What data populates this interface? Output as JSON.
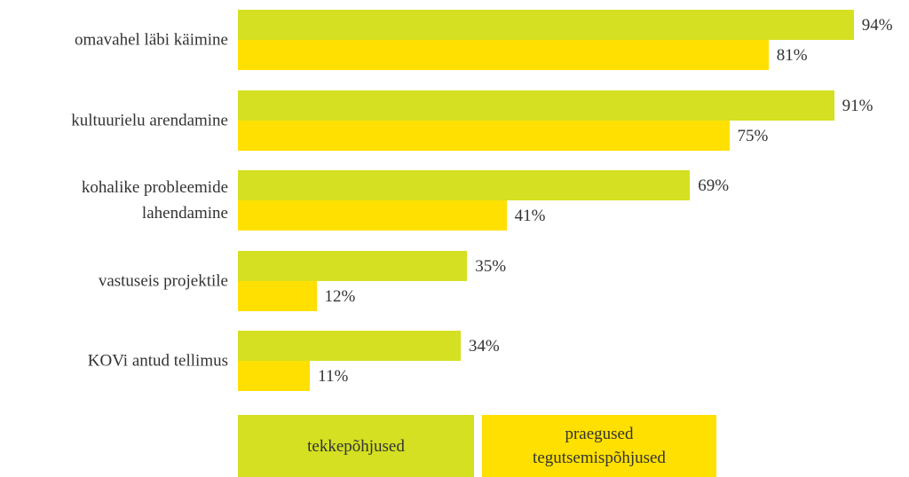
{
  "chart_data": {
    "type": "bar",
    "orientation": "horizontal",
    "categories": [
      "omavahel läbi käimine",
      "kultuurielu arendamine",
      "kohalike probleemide\nlahendamine",
      "vastuseis projektile",
      "KOVi antud tellimus"
    ],
    "series": [
      {
        "name": "tekkepõhjused",
        "color": "#d4e021",
        "values": [
          94,
          91,
          69,
          35,
          34
        ],
        "value_labels": [
          "94%",
          "91%",
          "69%",
          "35%",
          "34%"
        ]
      },
      {
        "name": "praegused\ntegutsemispõhjused",
        "color": "#ffe000",
        "values": [
          81,
          75,
          41,
          12,
          11
        ],
        "value_labels": [
          "81%",
          "75%",
          "41%",
          "12%",
          "11%"
        ]
      }
    ]
  }
}
